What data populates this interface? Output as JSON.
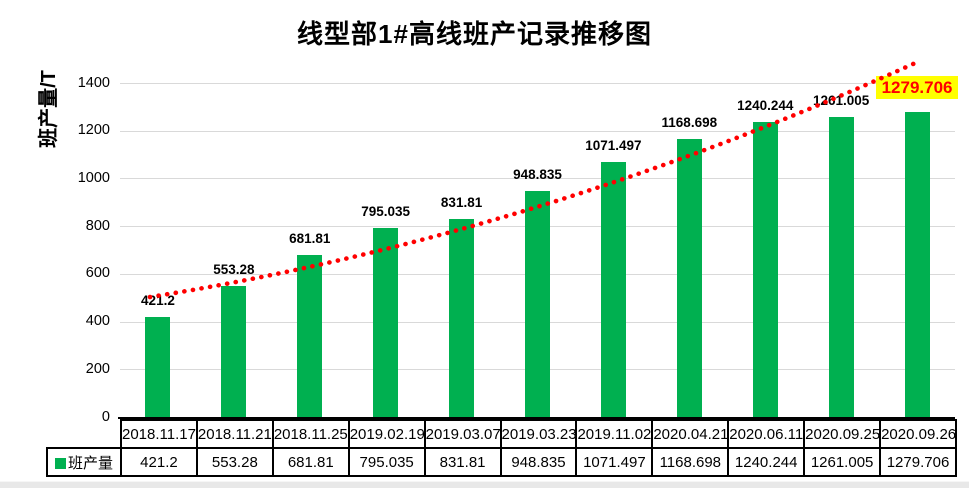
{
  "chart_data": {
    "type": "bar",
    "title": "线型部1#高线班产记录推移图",
    "ylabel": "班产量/T",
    "xlabel": "",
    "series_name": "班产量",
    "categories": [
      "2018.11.17",
      "2018.11.21",
      "2018.11.25",
      "2019.02.19",
      "2019.03.07",
      "2019.03.23",
      "2019.11.02",
      "2020.04.21",
      "2020.06.11",
      "2020.09.25",
      "2020.09.26"
    ],
    "values": [
      421.2,
      553.28,
      681.81,
      795.035,
      831.81,
      948.835,
      1071.497,
      1168.698,
      1240.244,
      1261.005,
      1279.706
    ],
    "ylim": [
      0,
      1400
    ],
    "y_ticks": [
      0,
      200,
      400,
      600,
      800,
      1000,
      1200,
      1400
    ],
    "grid": "horizontal",
    "legend_position": "table-left",
    "data_labels": "above-bars",
    "highlight": {
      "index": 10,
      "value": 1279.706,
      "background": "#FFFF00",
      "text_color": "#FF0000"
    },
    "trendline": {
      "style": "dotted",
      "color": "#FF0000",
      "points_value": [
        505,
        880,
        1495
      ]
    },
    "colors": {
      "bar": "#00B050",
      "gridline": "#D9D9D9",
      "trend": "#FF0000",
      "table_border": "#000000",
      "text": "#000000",
      "highlight_bg": "#FFFF00",
      "highlight_text": "#FF0000"
    }
  }
}
